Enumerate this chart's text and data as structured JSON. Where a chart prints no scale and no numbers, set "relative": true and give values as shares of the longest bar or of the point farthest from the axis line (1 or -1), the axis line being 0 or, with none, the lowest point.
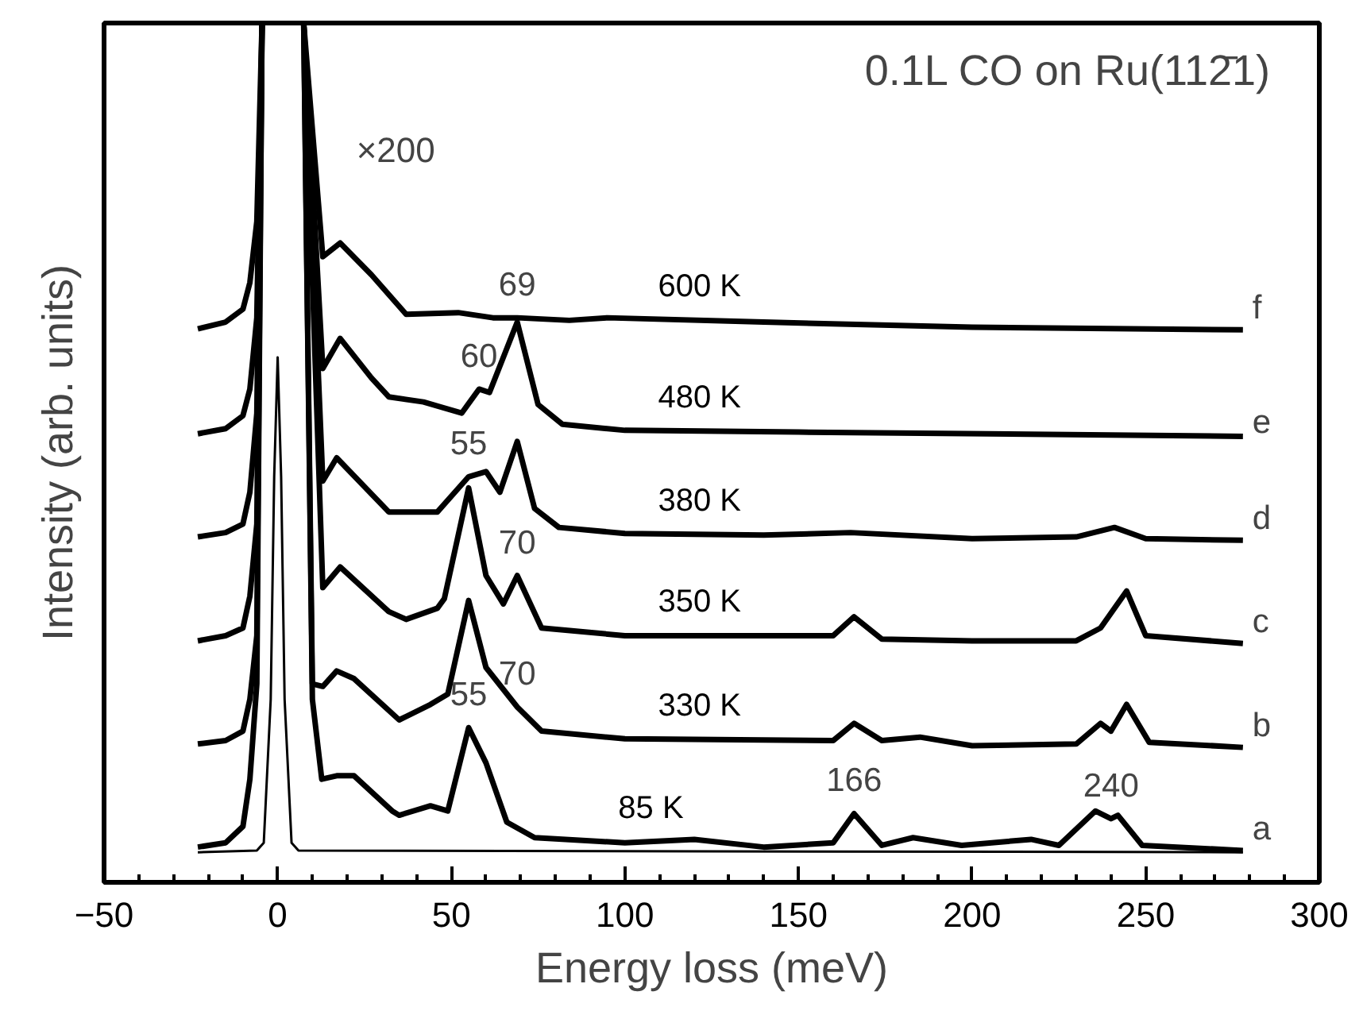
{
  "chart_data": {
    "type": "line",
    "relative": true,
    "title": "0.1L CO on Ru(112̄1)",
    "xlabel": "Energy loss (meV)",
    "ylabel": "Intensity (arb. units)",
    "xlim": [
      -50,
      300
    ],
    "xticks": [
      -50,
      0,
      50,
      100,
      150,
      200,
      250,
      300
    ],
    "grid": false,
    "legend": false,
    "marker": "none",
    "line_style": "solid",
    "tick_labels": "x",
    "series": [
      {
        "name": "85 K",
        "color": "#000000",
        "x": [
          -23,
          -15,
          -10,
          -8,
          -6,
          -4.5,
          1,
          7.5,
          10,
          12.7,
          17,
          22,
          33,
          35,
          44,
          49,
          55,
          60,
          66,
          74,
          100,
          120,
          140,
          160,
          166,
          174,
          183,
          197,
          217,
          225,
          235.5,
          240,
          242,
          249,
          278
        ],
        "values": [
          0.041,
          0.046,
          0.065,
          0.12,
          0.231,
          1,
          null,
          1,
          0.213,
          0.12,
          0.124,
          0.124,
          0.083,
          0.078,
          0.089,
          0.083,
          0.18,
          0.139,
          0.07,
          0.052,
          0.046,
          0.05,
          0.041,
          0.046,
          0.08,
          0.043,
          0.052,
          0.043,
          0.05,
          0.043,
          0.083,
          0.074,
          0.078,
          0.043,
          0.037
        ]
      },
      {
        "name": "330 K",
        "color": "#000000",
        "x": [
          -23,
          -15,
          -10,
          -8,
          -6,
          -4.5,
          1,
          7.5,
          10,
          13,
          17,
          22,
          35,
          44,
          49,
          55,
          60,
          69,
          76,
          100,
          160,
          166,
          174,
          185,
          200,
          230,
          237,
          240,
          244.5,
          251,
          278
        ],
        "values": [
          0.161,
          0.165,
          0.176,
          0.213,
          0.287,
          1,
          null,
          1,
          0.231,
          0.228,
          0.246,
          0.237,
          0.189,
          0.207,
          0.219,
          0.328,
          0.25,
          0.204,
          0.176,
          0.167,
          0.165,
          0.185,
          0.165,
          0.169,
          0.159,
          0.161,
          0.185,
          0.176,
          0.207,
          0.163,
          0.157
        ]
      },
      {
        "name": "350 K",
        "color": "#000000",
        "x": [
          -23,
          -15,
          -10,
          -8,
          -6,
          -4.5,
          1,
          7.5,
          13,
          18,
          32,
          37,
          46,
          48,
          55,
          60,
          65,
          69,
          76,
          100,
          160,
          166,
          174,
          200,
          230,
          237,
          244.5,
          250,
          278
        ],
        "values": [
          0.281,
          0.287,
          0.296,
          0.333,
          0.417,
          1,
          null,
          1,
          0.343,
          0.367,
          0.315,
          0.306,
          0.319,
          0.33,
          0.459,
          0.357,
          0.324,
          0.357,
          0.296,
          0.287,
          0.287,
          0.309,
          0.283,
          0.281,
          0.281,
          0.296,
          0.339,
          0.287,
          0.278
        ]
      },
      {
        "name": "380 K",
        "color": "#000000",
        "x": [
          -23,
          -15,
          -10,
          -8,
          -6,
          -4.5,
          1,
          7.5,
          13,
          17,
          32,
          46,
          55,
          60,
          64,
          69,
          74,
          81,
          100,
          140,
          165,
          200,
          230,
          241,
          250,
          278
        ],
        "values": [
          0.402,
          0.407,
          0.417,
          0.454,
          0.546,
          1,
          null,
          1,
          0.467,
          0.494,
          0.431,
          0.431,
          0.472,
          0.478,
          0.454,
          0.513,
          0.435,
          0.413,
          0.406,
          0.404,
          0.407,
          0.4,
          0.402,
          0.413,
          0.4,
          0.398
        ]
      },
      {
        "name": "480 K",
        "color": "#000000",
        "x": [
          -23,
          -15,
          -10,
          -8,
          -6,
          -4.5,
          1,
          7.5,
          13,
          18,
          27,
          32,
          42,
          53,
          58,
          61,
          69,
          75,
          82,
          100,
          150,
          278
        ],
        "values": [
          0.522,
          0.528,
          0.543,
          0.574,
          0.657,
          1,
          null,
          1,
          0.598,
          0.633,
          0.587,
          0.565,
          0.559,
          0.546,
          0.574,
          0.57,
          0.652,
          0.556,
          0.533,
          0.526,
          0.524,
          0.519
        ]
      },
      {
        "name": "600 K",
        "color": "#000000",
        "x": [
          -23,
          -15,
          -10,
          -8,
          -6,
          -4.5,
          1,
          7.5,
          13,
          18,
          27,
          37,
          52,
          62,
          69,
          84,
          95,
          140,
          200,
          278
        ],
        "values": [
          0.644,
          0.652,
          0.667,
          0.698,
          0.769,
          1,
          null,
          1,
          0.728,
          0.744,
          0.707,
          0.661,
          0.663,
          0.657,
          0.657,
          0.654,
          0.657,
          0.652,
          0.646,
          0.643
        ]
      },
      {
        "color": "#000000",
        "x": [
          -23,
          -6,
          -4,
          -2,
          -1,
          0,
          1,
          2,
          4,
          6,
          278
        ],
        "values": [
          0.035,
          0.037,
          0.046,
          0.213,
          0.472,
          0.611,
          0.472,
          0.213,
          0.046,
          0.037,
          0.035
        ]
      }
    ],
    "annotations": [
      "×200",
      {
        "text": "69",
        "x": 69,
        "y": 0.657
      },
      {
        "text": "60",
        "x": 58,
        "y": 0.574
      },
      {
        "text": "55",
        "x": 55,
        "y": 0.472
      },
      {
        "text": "70",
        "x": 69,
        "y": 0.357
      },
      {
        "text": "70",
        "x": 69,
        "y": 0.204
      },
      {
        "text": "55",
        "x": 55,
        "y": 0.18
      },
      {
        "text": "166",
        "x": 166,
        "y": 0.08
      },
      {
        "text": "240",
        "x": 240,
        "y": 0.074
      },
      {
        "text": "f",
        "x": 278,
        "y": 0.643
      },
      {
        "text": "e",
        "x": 278,
        "y": 0.519
      },
      {
        "text": "d",
        "x": 278,
        "y": 0.398
      },
      {
        "text": "c",
        "x": 278,
        "y": 0.278
      },
      {
        "text": "b",
        "x": 278,
        "y": 0.157
      },
      {
        "text": "a",
        "x": 278,
        "y": 0.037
      }
    ]
  }
}
